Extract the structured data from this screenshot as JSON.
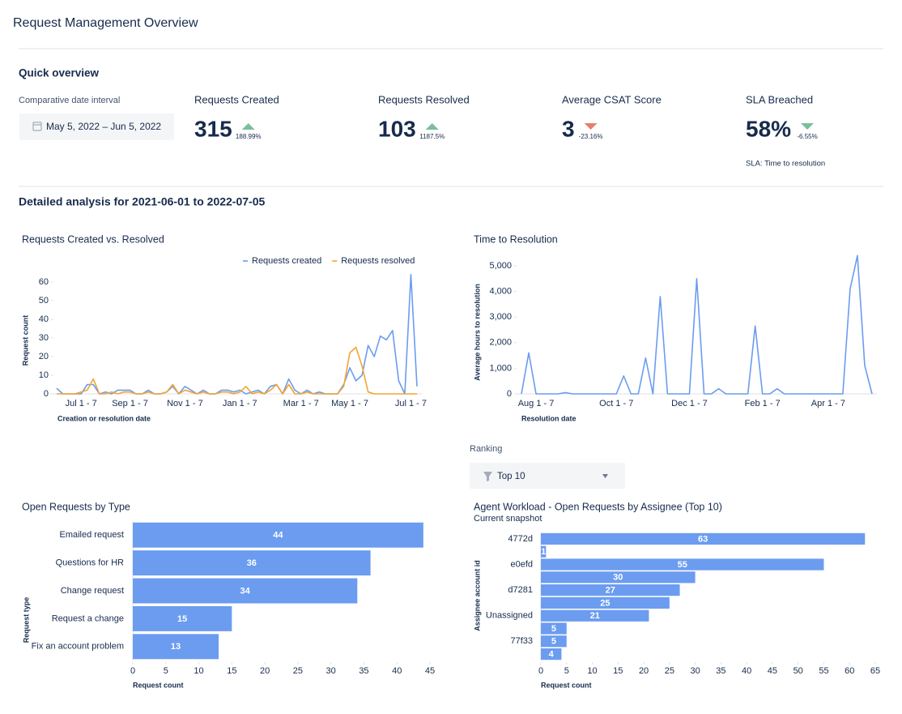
{
  "header": {
    "title": "Request Management Overview"
  },
  "quick_overview": {
    "title": "Quick overview",
    "date_label": "Comparative date interval",
    "date_range": "May 5, 2022  –  Jun 5, 2022"
  },
  "kpis": [
    {
      "label": "Requests Created",
      "value": "315",
      "change": "188.99%",
      "trend": "up",
      "color": "#79c09a"
    },
    {
      "label": "Requests Resolved",
      "value": "103",
      "change": "1187.5%",
      "trend": "up",
      "color": "#79c09a"
    },
    {
      "label": "Average CSAT Score",
      "value": "3",
      "change": "-23.16%",
      "trend": "down",
      "color": "#e5806d"
    },
    {
      "label": "SLA Breached",
      "value": "58%",
      "change": "-6.55%",
      "trend": "down",
      "color": "#79c09a",
      "note": "SLA: Time to resolution"
    }
  ],
  "detail_title": "Detailed analysis for 2021-06-01 to 2022-07-05",
  "ranking": {
    "label": "Ranking",
    "selected": "Top 10"
  },
  "chart_data": [
    {
      "type": "line",
      "title": "Requests Created vs. Resolved",
      "xlabel": "Creation or resolution date",
      "ylabel": "Request count",
      "legend": "top-right",
      "categories": [
        null,
        null,
        null,
        null,
        "Jul 1 - 7",
        null,
        null,
        null,
        null,
        null,
        null,
        null,
        "Sep 1 - 7",
        null,
        null,
        null,
        null,
        null,
        null,
        null,
        null,
        "Nov 1 - 7",
        null,
        null,
        null,
        null,
        null,
        null,
        null,
        null,
        "Jan 1 - 7",
        null,
        null,
        null,
        null,
        null,
        null,
        null,
        null,
        null,
        "Mar 1 - 7",
        null,
        null,
        null,
        null,
        null,
        null,
        null,
        "May 1 - 7",
        null,
        null,
        null,
        null,
        null,
        null,
        null,
        null,
        null,
        "Jul 1 - 7",
        null
      ],
      "series": [
        {
          "name": "Requests created",
          "color": "#6b9cf0",
          "values": [
            3,
            0,
            0,
            0,
            0,
            5,
            5,
            0,
            1,
            0,
            2,
            2,
            2,
            0,
            0,
            2,
            0,
            0,
            1,
            4,
            0,
            4,
            2,
            0,
            2,
            0,
            0,
            2,
            2,
            1,
            2,
            0,
            1,
            2,
            0,
            4,
            5,
            0,
            8,
            2,
            0,
            2,
            0,
            1,
            0,
            0,
            0,
            5,
            14,
            7,
            10,
            26,
            20,
            31,
            29,
            34,
            7,
            0,
            64,
            4
          ]
        },
        {
          "name": "Requests resolved",
          "color": "#f2a531",
          "values": [
            0,
            0,
            0,
            0,
            1,
            2,
            8,
            0,
            0,
            1,
            0,
            1,
            1,
            0,
            0,
            1,
            0,
            0,
            1,
            5,
            0,
            2,
            1,
            0,
            1,
            0,
            0,
            1,
            1,
            0,
            1,
            4,
            0,
            1,
            0,
            2,
            5,
            0,
            5,
            0,
            0,
            1,
            0,
            0,
            0,
            0,
            0,
            4,
            22,
            25,
            15,
            1,
            0,
            0,
            0,
            0,
            0,
            0,
            0,
            0
          ]
        }
      ],
      "ylim": [
        0,
        66
      ],
      "yticks": [
        0,
        10,
        20,
        30,
        40,
        50,
        60
      ]
    },
    {
      "type": "line",
      "title": "Time to Resolution",
      "xlabel": "Resolution date",
      "ylabel": "Average hours to resolution",
      "categories": [
        null,
        null,
        "Aug 1 - 7",
        null,
        null,
        null,
        null,
        null,
        null,
        null,
        null,
        null,
        null,
        "Oct 1 - 7",
        null,
        null,
        null,
        null,
        null,
        null,
        null,
        null,
        null,
        "Dec 1 - 7",
        null,
        null,
        null,
        null,
        null,
        null,
        null,
        null,
        null,
        "Feb 1 - 7",
        null,
        null,
        null,
        null,
        null,
        null,
        null,
        null,
        "Apr 1 - 7",
        null,
        null,
        null,
        null,
        null,
        null
      ],
      "values": [
        0,
        1600,
        0,
        0,
        0,
        0,
        50,
        0,
        0,
        0,
        0,
        0,
        0,
        0,
        700,
        0,
        0,
        1400,
        0,
        3800,
        0,
        0,
        0,
        0,
        4500,
        0,
        0,
        200,
        0,
        0,
        0,
        0,
        2650,
        0,
        0,
        200,
        0,
        0,
        0,
        0,
        0,
        0,
        0,
        0,
        0,
        4100,
        5400,
        1100,
        0
      ],
      "color": "#6b9cf0",
      "ylim": [
        0,
        5600
      ],
      "yticks": [
        0,
        {
          "value": 1000,
          "label": "1,000"
        },
        {
          "value": 2000,
          "label": "2,000"
        },
        {
          "value": 3000,
          "label": "3,000"
        },
        {
          "value": 4000,
          "label": "4,000"
        },
        {
          "value": 5000,
          "label": "5,000"
        }
      ]
    },
    {
      "type": "bar",
      "orientation": "horizontal",
      "title": "Open Requests by Type",
      "xlabel": "Request count",
      "ylabel": "Request type",
      "categories": [
        "Emailed request",
        "Questions for HR",
        "Change request",
        "Request a change",
        "Fix an account problem"
      ],
      "values": [
        44,
        36,
        34,
        15,
        13
      ],
      "color": "#6b9cf0",
      "data_labels": true,
      "xlim": [
        0,
        45
      ],
      "xticks": [
        0,
        5,
        10,
        15,
        20,
        25,
        30,
        35,
        40,
        45
      ]
    },
    {
      "type": "bar",
      "orientation": "horizontal",
      "title": "Agent Workload - Open Requests by Assignee (Top 10)",
      "subtitle": "Current snapshot",
      "xlabel": "Request count",
      "ylabel": "Assignee account id",
      "categories": [
        "4772d",
        null,
        "e0efd",
        null,
        "d7281",
        null,
        "Unassigned",
        null,
        "77f33",
        null
      ],
      "values": [
        63,
        1,
        55,
        30,
        27,
        25,
        21,
        5,
        5,
        4
      ],
      "color": "#6b9cf0",
      "data_labels": true,
      "xlim": [
        0,
        65
      ],
      "xticks": [
        0,
        5,
        10,
        15,
        20,
        25,
        30,
        35,
        40,
        45,
        50,
        55,
        60,
        65
      ]
    }
  ]
}
